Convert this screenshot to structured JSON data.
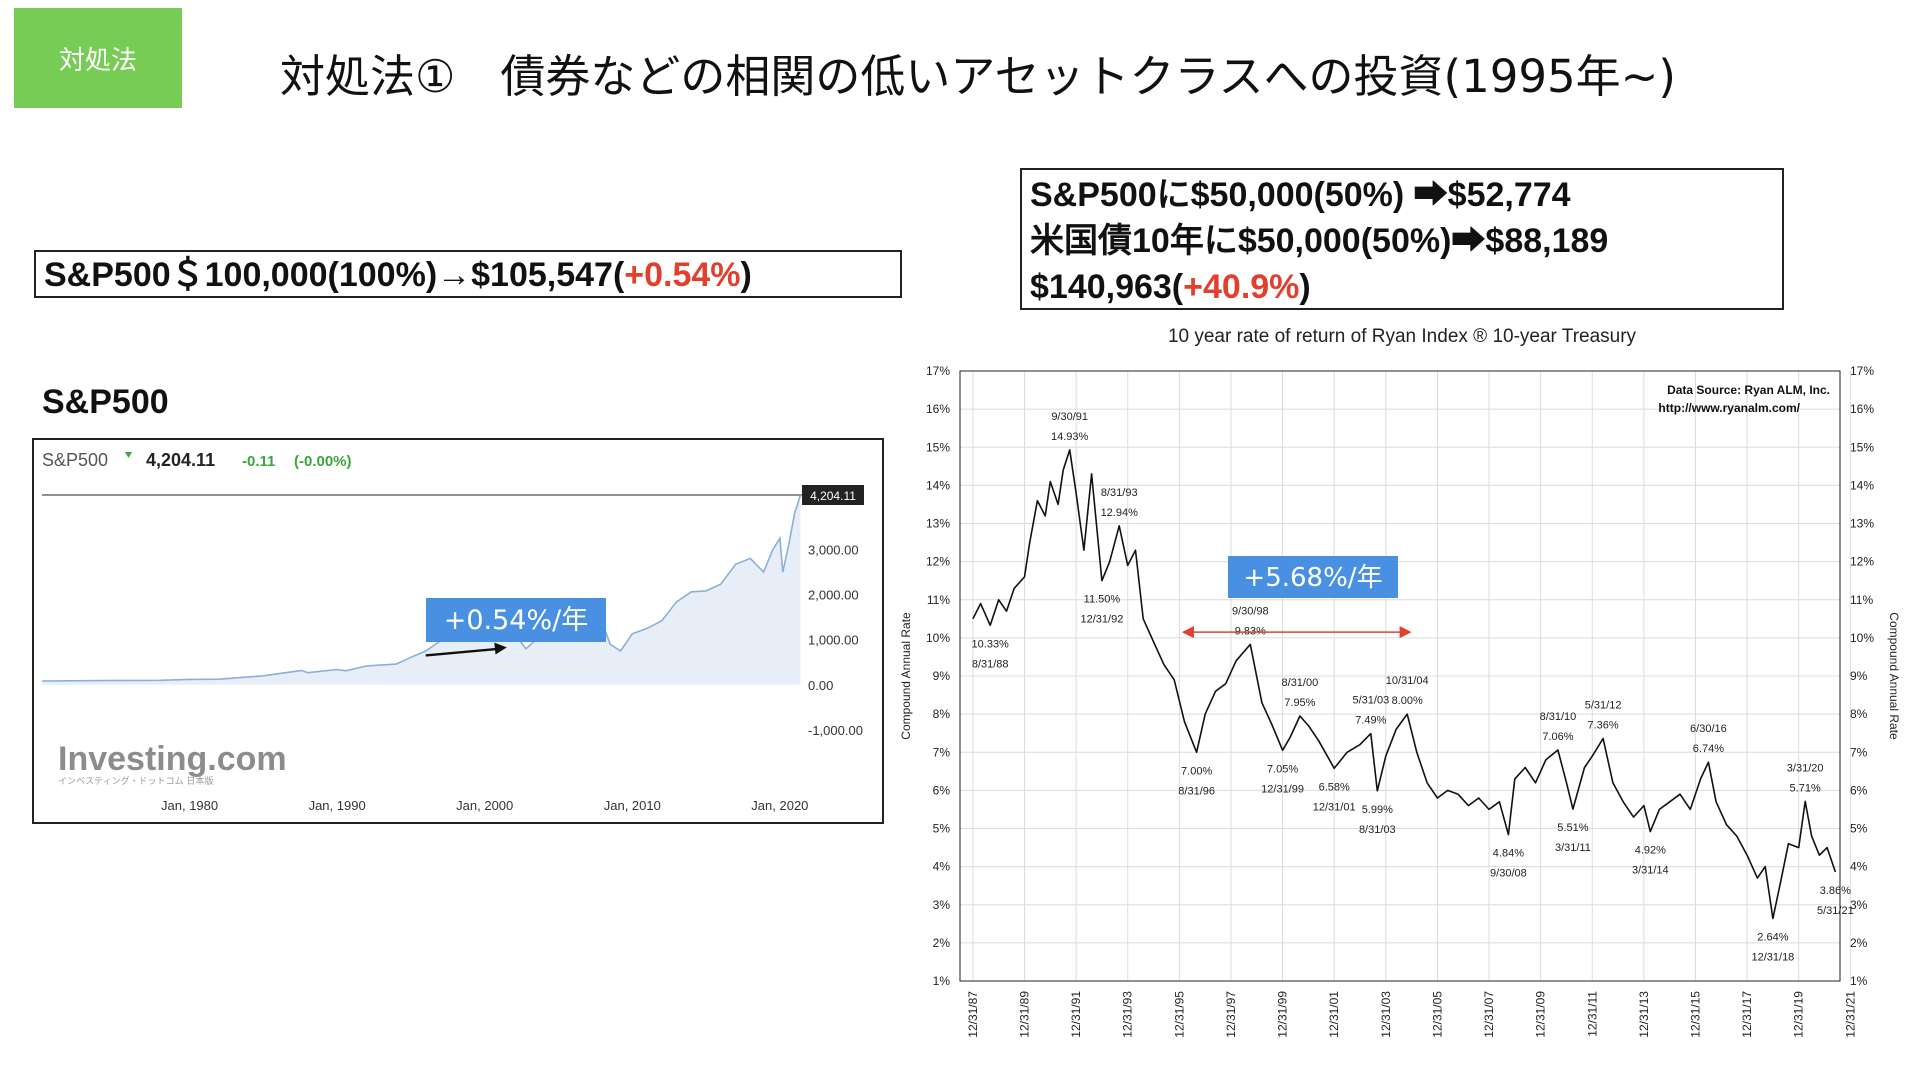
{
  "header": {
    "tag": "対処法",
    "title": "対処法①　債券などの相関の低いアセットクラスへの投資(1995年~)"
  },
  "box_left": {
    "text": "S&P500＄100,000(100%)→$105,547(",
    "highlight": "+0.54%",
    "tail": ")"
  },
  "box_right": {
    "line1": "S&P500に$50,000(50%)  ➡$52,774",
    "line2": "米国債10年に$50,000(50%)➡$88,189",
    "line3_pre": "$140,963(",
    "line3_highlight": "+40.9%",
    "line3_post": ")"
  },
  "sp_label": "S&P500",
  "colors": {
    "accent_green": "#77cc55",
    "highlight_red": "#e2402f",
    "badge_blue": "#4a90e2",
    "sp_line": "#8ab0d8",
    "sp_fill": "#e8eef7"
  },
  "chart_data": [
    {
      "type": "area",
      "header_name": "S&P500",
      "header_price": "4,204.11",
      "header_change": "-0.11",
      "header_pct": "(-0.00%)",
      "price_tag": "4,204.11",
      "annotation": "+0.54%/年",
      "watermark": "Investing.com",
      "watermark_sub": "インベスティング・ドットコム 日本版",
      "x_ticks": [
        {
          "label": "Jan, 1980",
          "year": 1980
        },
        {
          "label": "Jan, 1990",
          "year": 1990
        },
        {
          "label": "Jan, 2000",
          "year": 2000
        },
        {
          "label": "Jan, 2010",
          "year": 2010
        },
        {
          "label": "Jan, 2020",
          "year": 2020
        }
      ],
      "y_ticks": [
        {
          "label": "3,000.00",
          "v": 3000
        },
        {
          "label": "2,000.00",
          "v": 2000
        },
        {
          "label": "1,000.00",
          "v": 1000
        },
        {
          "label": "0.00",
          "v": 0
        },
        {
          "label": "-1,000.00",
          "v": -1000
        }
      ],
      "xlim": [
        1970,
        2021.5
      ],
      "ylim": [
        -1000,
        4204.11
      ],
      "arrow": {
        "from": [
          1996,
          650
        ],
        "to": [
          2001.5,
          830
        ]
      },
      "series": [
        {
          "x": [
            1970,
            1974,
            1978,
            1980,
            1982,
            1985,
            1987.6,
            1988,
            1990,
            1990.6,
            1992,
            1994,
            1995,
            1996,
            1997,
            1998,
            1999,
            2000,
            2000.7,
            2001.5,
            2002,
            2002.8,
            2003.5,
            2004,
            2005,
            2006,
            2007,
            2007.8,
            2008.5,
            2009.2,
            2010,
            2011,
            2012,
            2013,
            2014,
            2015,
            2016,
            2017,
            2018,
            2018.9,
            2019.5,
            2020,
            2020.2,
            2020.6,
            2021,
            2021.4
          ],
          "y": [
            85,
            95,
            100,
            120,
            125,
            200,
            320,
            270,
            340,
            310,
            420,
            460,
            610,
            750,
            970,
            1230,
            1450,
            1470,
            1400,
            1150,
            1130,
            800,
            1000,
            1150,
            1250,
            1400,
            1500,
            1530,
            900,
            750,
            1130,
            1250,
            1420,
            1840,
            2060,
            2080,
            2230,
            2670,
            2800,
            2500,
            2980,
            3250,
            2500,
            3100,
            3800,
            4204.11
          ]
        }
      ]
    },
    {
      "type": "line",
      "title": "10 year rate of return of Ryan Index ® 10-year Treasury",
      "ylabel": "Compound Annual Rate",
      "source_line1": "Data Source:  Ryan ALM, Inc.",
      "source_line2": "http://www.ryanalm.com/",
      "badge": "+5.68%/年",
      "xlim": [
        1987.5,
        2021.6
      ],
      "ylim": [
        1,
        17
      ],
      "x_ticks": [
        "12/31/87",
        "12/31/89",
        "12/31/91",
        "12/31/93",
        "12/31/95",
        "12/31/97",
        "12/31/99",
        "12/31/01",
        "12/31/03",
        "12/31/05",
        "12/31/07",
        "12/31/09",
        "12/31/11",
        "12/31/13",
        "12/31/15",
        "12/31/17",
        "12/31/19",
        "12/31/21"
      ],
      "y_ticks": [
        "1%",
        "2%",
        "3%",
        "4%",
        "5%",
        "6%",
        "7%",
        "8%",
        "9%",
        "10%",
        "11%",
        "12%",
        "13%",
        "14%",
        "15%",
        "16%",
        "17%"
      ],
      "double_arrow": {
        "from": 1996.1,
        "to": 2005.0,
        "y": 10.15
      },
      "annotations": [
        {
          "date": "8/31/88",
          "value": "10.33%",
          "x": 1988.67,
          "y": 10.33,
          "pos": "below"
        },
        {
          "date": "9/30/91",
          "value": "14.93%",
          "x": 1991.75,
          "y": 14.93,
          "pos": "above"
        },
        {
          "date": "12/31/92",
          "value": "11.50%",
          "x": 1993.0,
          "y": 11.5,
          "pos": "below"
        },
        {
          "date": "8/31/93",
          "value": "12.94%",
          "x": 1993.67,
          "y": 12.94,
          "pos": "above"
        },
        {
          "date": "8/31/96",
          "value": "7.00%",
          "x": 1996.67,
          "y": 7.0,
          "pos": "below"
        },
        {
          "date": "9/30/98",
          "value": "9.83%",
          "x": 1998.75,
          "y": 9.83,
          "pos": "above"
        },
        {
          "date": "12/31/99",
          "value": "7.05%",
          "x": 2000.0,
          "y": 7.05,
          "pos": "below"
        },
        {
          "date": "8/31/00",
          "value": "7.95%",
          "x": 2000.67,
          "y": 7.95,
          "pos": "above"
        },
        {
          "date": "12/31/01",
          "value": "6.58%",
          "x": 2002.0,
          "y": 6.58,
          "pos": "below"
        },
        {
          "date": "5/31/03",
          "value": "7.49%",
          "x": 2003.42,
          "y": 7.49,
          "pos": "above"
        },
        {
          "date": "8/31/03",
          "value": "5.99%",
          "x": 2003.67,
          "y": 5.99,
          "pos": "below"
        },
        {
          "date": "10/31/04",
          "value": "8.00%",
          "x": 2004.83,
          "y": 8.0,
          "pos": "above"
        },
        {
          "date": "9/30/08",
          "value": "4.84%",
          "x": 2008.75,
          "y": 4.84,
          "pos": "below"
        },
        {
          "date": "8/31/10",
          "value": "7.06%",
          "x": 2010.67,
          "y": 7.06,
          "pos": "above"
        },
        {
          "date": "3/31/11",
          "value": "5.51%",
          "x": 2011.25,
          "y": 5.51,
          "pos": "below"
        },
        {
          "date": "5/31/12",
          "value": "7.36%",
          "x": 2012.42,
          "y": 7.36,
          "pos": "above"
        },
        {
          "date": "3/31/14",
          "value": "4.92%",
          "x": 2014.25,
          "y": 4.92,
          "pos": "below"
        },
        {
          "date": "6/30/16",
          "value": "6.74%",
          "x": 2016.5,
          "y": 6.74,
          "pos": "above"
        },
        {
          "date": "12/31/18",
          "value": "2.64%",
          "x": 2019.0,
          "y": 2.64,
          "pos": "below"
        },
        {
          "date": "3/31/20",
          "value": "5.71%",
          "x": 2020.25,
          "y": 5.71,
          "pos": "above"
        },
        {
          "date": "5/31/21",
          "value": "3.86%",
          "x": 2021.42,
          "y": 3.86,
          "pos": "below"
        }
      ],
      "series": [
        {
          "x": [
            1988.0,
            1988.3,
            1988.67,
            1989.0,
            1989.3,
            1989.6,
            1990.0,
            1990.2,
            1990.5,
            1990.8,
            1991.0,
            1991.3,
            1991.5,
            1991.75,
            1992.0,
            1992.3,
            1992.6,
            1993.0,
            1993.3,
            1993.67,
            1994.0,
            1994.3,
            1994.6,
            1995.0,
            1995.4,
            1995.8,
            1996.2,
            1996.67,
            1997.0,
            1997.4,
            1997.8,
            1998.2,
            1998.75,
            1999.2,
            1999.6,
            2000.0,
            2000.3,
            2000.67,
            2001.0,
            2001.4,
            2002.0,
            2002.5,
            2003.0,
            2003.42,
            2003.67,
            2004.0,
            2004.4,
            2004.83,
            2005.2,
            2005.6,
            2006.0,
            2006.4,
            2006.8,
            2007.2,
            2007.6,
            2008.0,
            2008.4,
            2008.75,
            2009.0,
            2009.4,
            2009.8,
            2010.2,
            2010.67,
            2011.0,
            2011.25,
            2011.7,
            2012.0,
            2012.42,
            2012.8,
            2013.2,
            2013.6,
            2014.0,
            2014.25,
            2014.6,
            2015.0,
            2015.4,
            2015.8,
            2016.2,
            2016.5,
            2016.8,
            2017.2,
            2017.6,
            2018.0,
            2018.4,
            2018.7,
            2019.0,
            2019.3,
            2019.6,
            2020.0,
            2020.25,
            2020.5,
            2020.8,
            2021.1,
            2021.42
          ],
          "y": [
            10.5,
            10.9,
            10.33,
            11.0,
            10.7,
            11.3,
            11.6,
            12.5,
            13.6,
            13.2,
            14.1,
            13.5,
            14.4,
            14.93,
            13.8,
            12.3,
            14.3,
            11.5,
            12.0,
            12.94,
            11.9,
            12.3,
            10.5,
            9.9,
            9.3,
            8.9,
            7.8,
            7.0,
            8.0,
            8.6,
            8.8,
            9.4,
            9.83,
            8.3,
            7.7,
            7.05,
            7.4,
            7.95,
            7.7,
            7.3,
            6.58,
            7.0,
            7.2,
            7.49,
            5.99,
            6.9,
            7.6,
            8.0,
            7.0,
            6.2,
            5.8,
            6.0,
            5.9,
            5.6,
            5.8,
            5.5,
            5.7,
            4.84,
            6.3,
            6.6,
            6.2,
            6.8,
            7.06,
            6.2,
            5.51,
            6.6,
            6.9,
            7.36,
            6.2,
            5.7,
            5.3,
            5.6,
            4.92,
            5.5,
            5.7,
            5.9,
            5.5,
            6.3,
            6.74,
            5.7,
            5.1,
            4.8,
            4.3,
            3.7,
            4.0,
            2.64,
            3.6,
            4.6,
            4.5,
            5.71,
            4.8,
            4.3,
            4.5,
            3.86
          ]
        }
      ]
    }
  ]
}
